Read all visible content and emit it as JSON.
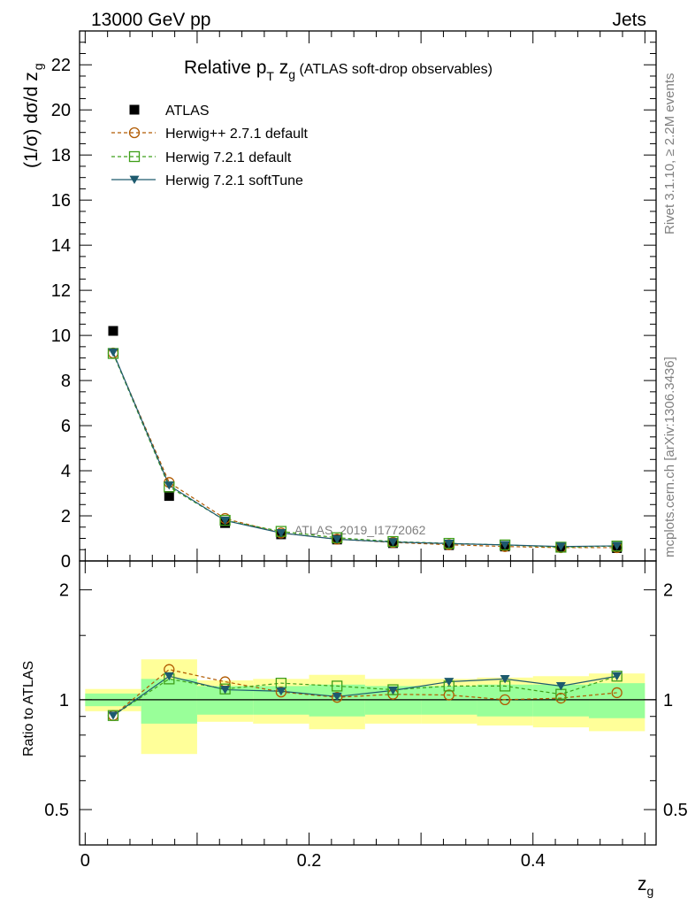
{
  "header": {
    "left": "13000 GeV pp",
    "right": "Jets"
  },
  "side": {
    "version": "Rivet 3.1.10, ≥ 2.2M events",
    "source": "mcplots.cern.ch [arXiv:1306.3436]"
  },
  "chart_data": [
    {
      "type": "line",
      "title": {
        "prefix": "Relative p",
        "sub1": "T",
        "mid": " z",
        "sub2": "g",
        "suffix": " (ATLAS soft-drop observables)"
      },
      "ylabel": {
        "main": "(1/σ) dσ/d z",
        "sub": "g"
      },
      "ylim": [
        0,
        23.5
      ],
      "yticks": [
        "0",
        "2",
        "4",
        "6",
        "8",
        "10",
        "12",
        "14",
        "16",
        "18",
        "20",
        "22"
      ],
      "watermark": "ATLAS_2019_I1772062",
      "legend_position": "top-left",
      "x": [
        0.025,
        0.075,
        0.125,
        0.175,
        0.225,
        0.275,
        0.325,
        0.375,
        0.425,
        0.475
      ],
      "series": [
        {
          "name": "ATLAS",
          "style": "data",
          "marker": "square-filled",
          "color": "#000000",
          "values": [
            10.2,
            2.88,
            1.68,
            1.18,
            0.95,
            0.79,
            0.7,
            0.64,
            0.59,
            0.57
          ]
        },
        {
          "name": "Herwig++ 2.7.1 default",
          "style": "dashed",
          "marker": "circle-open",
          "color": "#b15a00",
          "values": [
            9.22,
            3.48,
            1.88,
            1.24,
            0.965,
            0.82,
            0.72,
            0.64,
            0.59,
            0.59
          ]
        },
        {
          "name": "Herwig 7.2.1 default",
          "style": "dashed",
          "marker": "square-open",
          "color": "#3f9f1a",
          "values": [
            9.2,
            3.28,
            1.8,
            1.31,
            1.03,
            0.86,
            0.78,
            0.71,
            0.61,
            0.66
          ]
        },
        {
          "name": "Herwig 7.2.1 softTune",
          "style": "solid",
          "marker": "triangle-down-filled",
          "color": "#1d5a6e",
          "values": [
            9.25,
            3.35,
            1.79,
            1.24,
            0.96,
            0.84,
            0.77,
            0.71,
            0.64,
            0.67
          ]
        }
      ]
    },
    {
      "type": "line",
      "ylabel": "Ratio to ATLAS",
      "xlabel": {
        "main": "z",
        "sub": "g"
      },
      "xlim": [
        -0.005,
        0.51
      ],
      "xticks": [
        "0",
        "0.2",
        "0.4"
      ],
      "xtick_values": [
        0,
        0.2,
        0.4
      ],
      "ylim": [
        0.4,
        2.4
      ],
      "yscale": "log",
      "yticks": [
        "0.5",
        "1",
        "2"
      ],
      "ytick_values": [
        0.5,
        1,
        2
      ],
      "bands": [
        {
          "x0": 0.0,
          "x1": 0.05,
          "stat": [
            0.96,
            1.04
          ],
          "total": [
            0.93,
            1.07
          ]
        },
        {
          "x0": 0.05,
          "x1": 0.1,
          "stat": [
            0.86,
            1.14
          ],
          "total": [
            0.71,
            1.29
          ]
        },
        {
          "x0": 0.1,
          "x1": 0.15,
          "stat": [
            0.91,
            1.09
          ],
          "total": [
            0.87,
            1.13
          ]
        },
        {
          "x0": 0.15,
          "x1": 0.2,
          "stat": [
            0.91,
            1.09
          ],
          "total": [
            0.86,
            1.14
          ]
        },
        {
          "x0": 0.2,
          "x1": 0.25,
          "stat": [
            0.9,
            1.1
          ],
          "total": [
            0.83,
            1.17
          ]
        },
        {
          "x0": 0.25,
          "x1": 0.3,
          "stat": [
            0.91,
            1.09
          ],
          "total": [
            0.86,
            1.14
          ]
        },
        {
          "x0": 0.3,
          "x1": 0.35,
          "stat": [
            0.91,
            1.09
          ],
          "total": [
            0.86,
            1.14
          ]
        },
        {
          "x0": 0.35,
          "x1": 0.4,
          "stat": [
            0.9,
            1.1
          ],
          "total": [
            0.85,
            1.15
          ]
        },
        {
          "x0": 0.4,
          "x1": 0.45,
          "stat": [
            0.9,
            1.1
          ],
          "total": [
            0.84,
            1.16
          ]
        },
        {
          "x0": 0.45,
          "x1": 0.5,
          "stat": [
            0.89,
            1.11
          ],
          "total": [
            0.82,
            1.18
          ]
        }
      ],
      "x": [
        0.025,
        0.075,
        0.125,
        0.175,
        0.225,
        0.275,
        0.325,
        0.375,
        0.425,
        0.475
      ],
      "series": [
        {
          "name": "Herwig++ 2.7.1 default",
          "style": "dashed",
          "marker": "circle-open",
          "color": "#b15a00",
          "values": [
            0.905,
            1.21,
            1.12,
            1.05,
            1.015,
            1.035,
            1.03,
            1.0,
            1.01,
            1.045
          ]
        },
        {
          "name": "Herwig 7.2.1 default",
          "style": "dashed",
          "marker": "square-open",
          "color": "#3f9f1a",
          "values": [
            0.905,
            1.14,
            1.07,
            1.11,
            1.09,
            1.065,
            1.09,
            1.09,
            1.035,
            1.16
          ]
        },
        {
          "name": "Herwig 7.2.1 softTune",
          "style": "solid",
          "marker": "triangle-down-filled",
          "color": "#1d5a6e",
          "values": [
            0.905,
            1.16,
            1.065,
            1.055,
            1.02,
            1.06,
            1.12,
            1.14,
            1.09,
            1.16
          ]
        }
      ]
    }
  ]
}
